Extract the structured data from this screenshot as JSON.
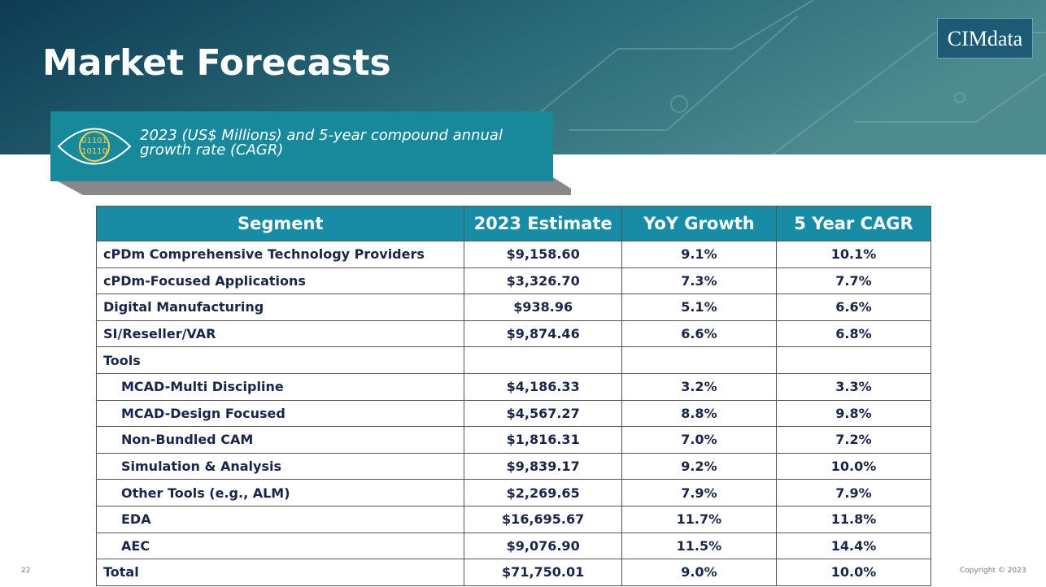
{
  "header": {
    "title": "Market Forecasts",
    "logo": "CIMdata"
  },
  "subtitle": "2023 (US$ Millions) and 5-year compound annual growth rate (CAGR)",
  "table": {
    "columns": [
      "Segment",
      "2023 Estimate",
      "YoY Growth",
      "5 Year CAGR"
    ],
    "rows": [
      {
        "segment": "cPDm Comprehensive Technology Providers",
        "estimate": "$9,158.60",
        "yoy": "9.1%",
        "cagr": "10.1%"
      },
      {
        "segment": "cPDm-Focused Applications",
        "estimate": "$3,326.70",
        "yoy": "7.3%",
        "cagr": "7.7%"
      },
      {
        "segment": "Digital Manufacturing",
        "estimate": "$938.96",
        "yoy": "5.1%",
        "cagr": "6.6%"
      },
      {
        "segment": "SI/Reseller/VAR",
        "estimate": "$9,874.46",
        "yoy": "6.6%",
        "cagr": "6.8%"
      },
      {
        "segment": "Tools",
        "children": [
          {
            "segment": "MCAD-Multi Discipline",
            "estimate": "$4,186.33",
            "yoy": "3.2%",
            "cagr": "3.3%"
          },
          {
            "segment": "MCAD-Design Focused",
            "estimate": "$4,567.27",
            "yoy": "8.8%",
            "cagr": "9.8%"
          },
          {
            "segment": "Non-Bundled CAM",
            "estimate": "$1,816.31",
            "yoy": "7.0%",
            "cagr": "7.2%"
          },
          {
            "segment": "Simulation & Analysis",
            "estimate": "$9,839.17",
            "yoy": "9.2%",
            "cagr": "10.0%"
          },
          {
            "segment": "Other Tools (e.g., ALM)",
            "estimate": "$2,269.65",
            "yoy": "7.9%",
            "cagr": "7.9%"
          },
          {
            "segment": "EDA",
            "estimate": "$16,695.67",
            "yoy": "11.7%",
            "cagr": "11.8%"
          },
          {
            "segment": "AEC",
            "estimate": "$9,076.90",
            "yoy": "11.5%",
            "cagr": "14.4%"
          }
        ]
      },
      {
        "segment": "Total",
        "estimate": "$71,750.01",
        "yoy": "9.0%",
        "cagr": "10.0%"
      }
    ]
  },
  "footer": {
    "page_number": "22",
    "copyright": "Copyright © 2023"
  }
}
